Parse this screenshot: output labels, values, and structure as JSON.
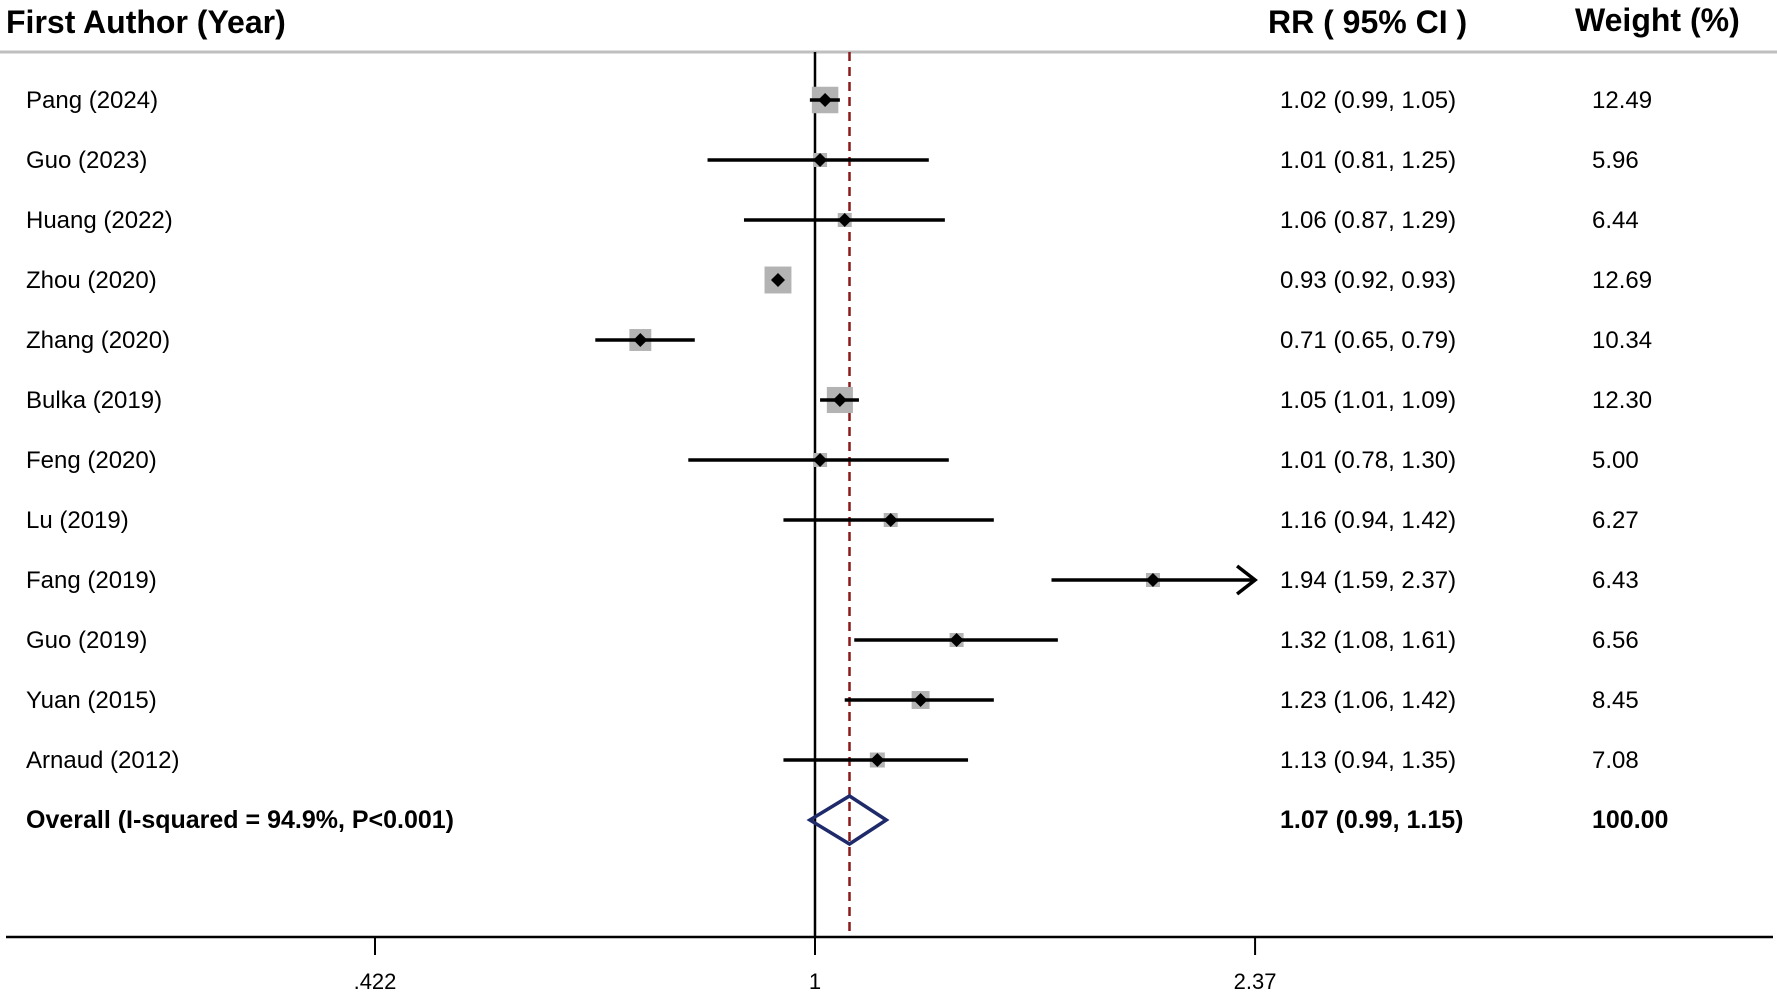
{
  "headers": {
    "study": "First Author (Year)",
    "estimate": "RR ( 95% CI )",
    "weight": "Weight (%)"
  },
  "chart_data": {
    "type": "forest",
    "scale": "log",
    "studies": [
      {
        "label": "Pang (2024)",
        "rr": 1.02,
        "lower": 0.99,
        "upper": 1.05,
        "weight": 12.49,
        "ci_text": "1.02 (0.99, 1.05)",
        "weight_text": "12.49"
      },
      {
        "label": "Guo (2023)",
        "rr": 1.01,
        "lower": 0.81,
        "upper": 1.25,
        "weight": 5.96,
        "ci_text": "1.01 (0.81, 1.25)",
        "weight_text": "5.96"
      },
      {
        "label": "Huang (2022)",
        "rr": 1.06,
        "lower": 0.87,
        "upper": 1.29,
        "weight": 6.44,
        "ci_text": "1.06 (0.87, 1.29)",
        "weight_text": "6.44"
      },
      {
        "label": "Zhou (2020)",
        "rr": 0.93,
        "lower": 0.92,
        "upper": 0.93,
        "weight": 12.69,
        "ci_text": "0.93 (0.92, 0.93)",
        "weight_text": "12.69"
      },
      {
        "label": "Zhang (2020)",
        "rr": 0.71,
        "lower": 0.65,
        "upper": 0.79,
        "weight": 10.34,
        "ci_text": "0.71 (0.65, 0.79)",
        "weight_text": "10.34"
      },
      {
        "label": "Bulka (2019)",
        "rr": 1.05,
        "lower": 1.01,
        "upper": 1.09,
        "weight": 12.3,
        "ci_text": "1.05 (1.01, 1.09)",
        "weight_text": "12.30"
      },
      {
        "label": "Feng (2020)",
        "rr": 1.01,
        "lower": 0.78,
        "upper": 1.3,
        "weight": 5.0,
        "ci_text": "1.01 (0.78, 1.30)",
        "weight_text": "5.00"
      },
      {
        "label": "Lu (2019)",
        "rr": 1.16,
        "lower": 0.94,
        "upper": 1.42,
        "weight": 6.27,
        "ci_text": "1.16 (0.94, 1.42)",
        "weight_text": "6.27"
      },
      {
        "label": "Fang (2019)",
        "rr": 1.94,
        "lower": 1.59,
        "upper": 2.37,
        "weight": 6.43,
        "ci_text": "1.94 (1.59, 2.37)",
        "weight_text": "6.43",
        "arrow_right": true
      },
      {
        "label": "Guo (2019)",
        "rr": 1.32,
        "lower": 1.08,
        "upper": 1.61,
        "weight": 6.56,
        "ci_text": "1.32 (1.08, 1.61)",
        "weight_text": "6.56"
      },
      {
        "label": "Yuan (2015)",
        "rr": 1.23,
        "lower": 1.06,
        "upper": 1.42,
        "weight": 8.45,
        "ci_text": "1.23 (1.06, 1.42)",
        "weight_text": "8.45"
      },
      {
        "label": "Arnaud (2012)",
        "rr": 1.13,
        "lower": 0.94,
        "upper": 1.35,
        "weight": 7.08,
        "ci_text": "1.13 (0.94, 1.35)",
        "weight_text": "7.08"
      }
    ],
    "overall": {
      "label": "Overall  (I-squared = 94.9%, P<0.001)",
      "rr": 1.07,
      "lower": 0.99,
      "upper": 1.15,
      "ci_text": "1.07 (0.99, 1.15)",
      "weight_text": "100.00"
    },
    "x_ticks": [
      {
        "value": 0.422,
        "label": ".422"
      },
      {
        "value": 1,
        "label": "1"
      },
      {
        "value": 2.37,
        "label": "2.37"
      }
    ],
    "xlim": [
      0.422,
      2.37
    ],
    "null_line": 1,
    "colors": {
      "diamond": "#1f2a6b",
      "overall_line": "#8b1a1a",
      "weight_box": "#b3b3b3",
      "ci_line": "#000000"
    }
  }
}
